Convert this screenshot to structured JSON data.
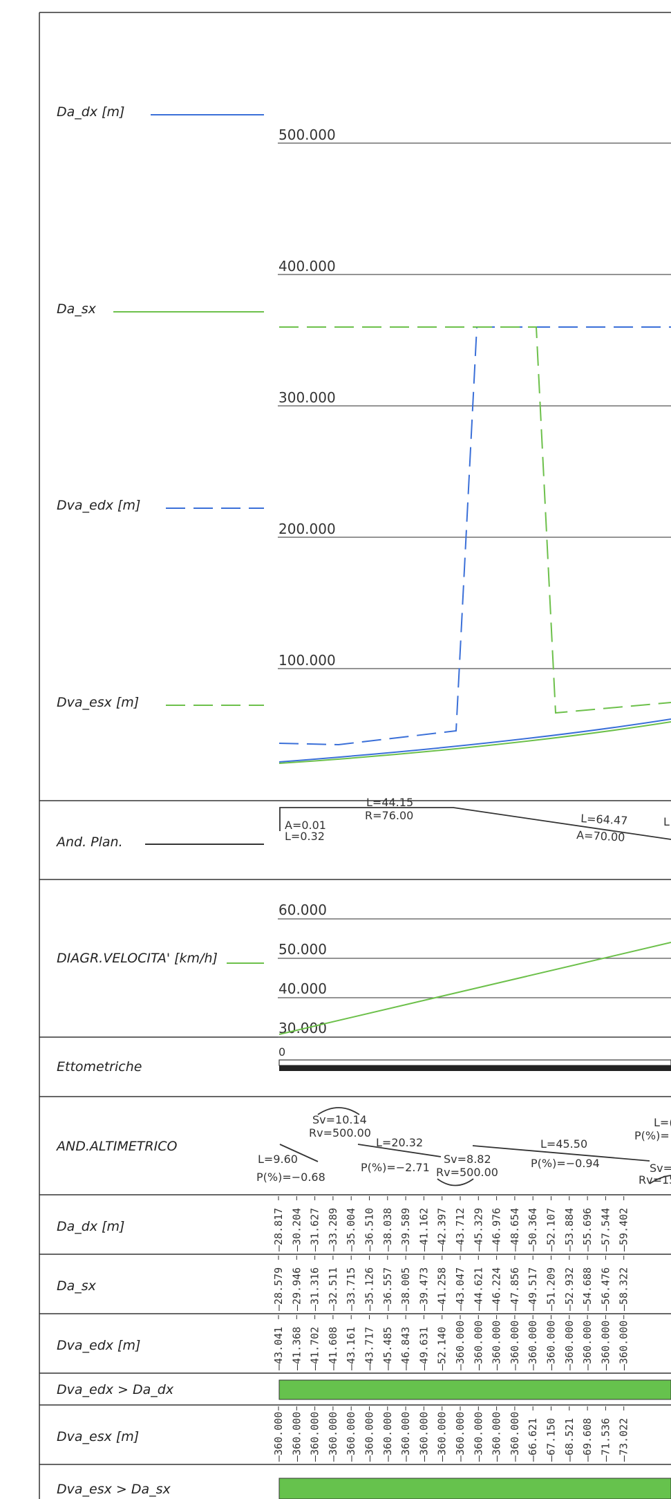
{
  "colors": {
    "blue": "#3a6fd8",
    "green": "#6cc04a",
    "frame": "#333333",
    "bar_fill": "#66c24d"
  },
  "top_diagram": {
    "y_ticks": [
      "500.000",
      "400.000",
      "300.000",
      "200.000",
      "100.000"
    ],
    "legend": [
      {
        "label": "Da_dx [m]",
        "color": "blue",
        "style": "solid"
      },
      {
        "label": "Da_sx",
        "color": "green",
        "style": "solid"
      },
      {
        "label": "Dva_edx [m]",
        "color": "blue",
        "style": "dashed"
      },
      {
        "label": "Dva_esx [m]",
        "color": "green",
        "style": "dashed"
      }
    ]
  },
  "and_plan": {
    "label": "And. Plan.",
    "ann_a1": "A=0.01",
    "ann_l1": "L=0.32",
    "ann_l2": "L=44.15",
    "ann_r2": "R=76.00",
    "ann_l3": "L=64.47",
    "ann_a3": "A=70.00",
    "ann_l4": "L"
  },
  "speed_diagram": {
    "label": "DIAGR.VELOCITA' [km/h]",
    "y_ticks": [
      "60.000",
      "50.000",
      "40.000",
      "30.000"
    ]
  },
  "ettometriche": {
    "label": "Ettometriche",
    "start": "0"
  },
  "altimetrico": {
    "label": "AND.ALTIMETRICO",
    "sv1": "Sv=10.14",
    "rv1": "Rv=500.00",
    "l1": "L=9.60",
    "p1": "P(%)=−0.68",
    "l2": "L=20.32",
    "p2": "P(%)=−2.71",
    "sv2": "Sv=8.82",
    "rv2": "Rv=500.00",
    "l3": "L=45.50",
    "p3": "P(%)=−0.94",
    "l4": "L=(",
    "p4": "P(%)=",
    "sv3": "Sv=",
    "rv3": "Rv=15"
  },
  "table": {
    "rows": [
      {
        "label": "Da_dx [m]",
        "type": "values",
        "values": [
          "28.817",
          "30.204",
          "31.627",
          "33.289",
          "35.004",
          "36.510",
          "38.038",
          "39.589",
          "41.162",
          "42.397",
          "43.712",
          "45.329",
          "46.976",
          "48.654",
          "50.364",
          "52.107",
          "53.884",
          "55.696",
          "57.544",
          "59.402"
        ]
      },
      {
        "label": "Da_sx",
        "type": "values",
        "values": [
          "28.579",
          "29.946",
          "31.316",
          "32.511",
          "33.715",
          "35.126",
          "36.557",
          "38.005",
          "39.473",
          "41.258",
          "43.047",
          "44.621",
          "46.224",
          "47.856",
          "49.517",
          "51.209",
          "52.932",
          "54.688",
          "56.476",
          "58.322"
        ]
      },
      {
        "label": "Dva_edx [m]",
        "type": "values",
        "values": [
          "43.041",
          "41.368",
          "41.702",
          "41.608",
          "43.161",
          "43.717",
          "45.485",
          "46.843",
          "49.631",
          "52.140",
          "360.000",
          "360.000",
          "360.000",
          "360.000",
          "360.000",
          "360.000",
          "360.000",
          "360.000",
          "360.000",
          "360.000"
        ]
      },
      {
        "label": "Dva_edx > Da_dx",
        "type": "bar"
      },
      {
        "label": "Dva_esx [m]",
        "type": "values",
        "values": [
          "360.000",
          "360.000",
          "360.000",
          "360.000",
          "360.000",
          "360.000",
          "360.000",
          "360.000",
          "360.000",
          "360.000",
          "360.000",
          "360.000",
          "360.000",
          "360.000",
          "66.621",
          "67.150",
          "68.521",
          "69.608",
          "71.536",
          "73.022"
        ]
      },
      {
        "label": "Dva_esx > Da_sx",
        "type": "bar"
      }
    ]
  }
}
